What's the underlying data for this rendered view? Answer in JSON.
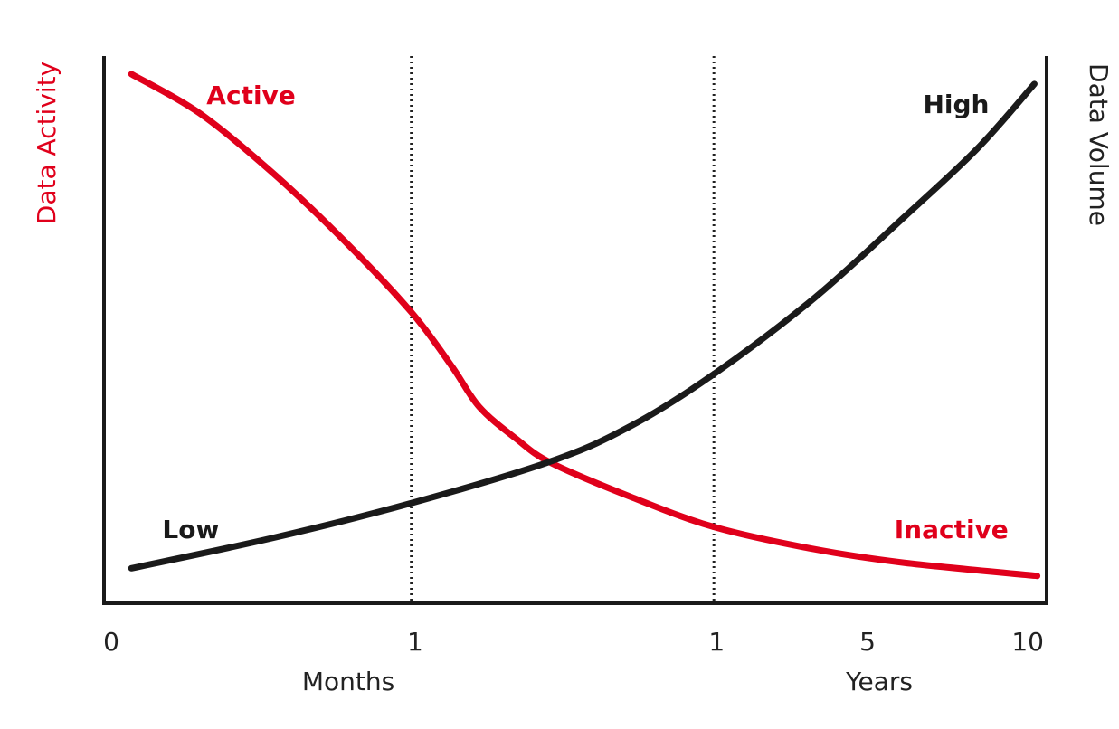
{
  "chart_data": {
    "type": "line",
    "ylabel": "Data Activity",
    "y2label": "Data Volume",
    "xlim": [
      0,
      100
    ],
    "ylim": [
      0,
      100
    ],
    "xticks": [
      0,
      {
        "value": 33,
        "label": "1"
      },
      {
        "value": 65,
        "label": "1"
      },
      {
        "value": 81,
        "label": "5"
      },
      {
        "value": 98,
        "label": "10"
      }
    ],
    "vlines": [
      32.6,
      64.7
    ],
    "xgroups": [
      "Months",
      "Years"
    ],
    "series": [
      {
        "color": "#e0001b",
        "x": [
          2.9,
          10.1,
          17.8,
          25.4,
          32.6,
          36.9,
          39.8,
          43.7,
          47.5,
          56.1,
          64.8,
          75.3,
          84.9,
          99.0
        ],
        "values": [
          96.7,
          89.6,
          78.8,
          66.4,
          53.2,
          43.3,
          35.9,
          30.1,
          25.6,
          19.3,
          13.9,
          9.9,
          7.4,
          5.0
        ]
      },
      {
        "color": "#1a1a1a",
        "x": [
          2.9,
          17.8,
          32.6,
          47.5,
          56.1,
          64.8,
          75.3,
          84.9,
          92.6,
          98.7
        ],
        "values": [
          6.4,
          11.9,
          18.3,
          26.0,
          32.6,
          42.0,
          55.7,
          70.6,
          83.0,
          94.9
        ]
      }
    ],
    "annotations": [
      {
        "text": "Active",
        "x": 15.6,
        "y": 92.6,
        "color": "#e0001b"
      },
      {
        "text": "High",
        "x": 90.4,
        "y": 90.9,
        "color": "#1a1a1a"
      },
      {
        "text": "Low",
        "x": 9.2,
        "y": 13.2,
        "color": "#1a1a1a"
      },
      {
        "text": "Inactive",
        "x": 89.9,
        "y": 13.2,
        "color": "#e0001b"
      }
    ]
  }
}
